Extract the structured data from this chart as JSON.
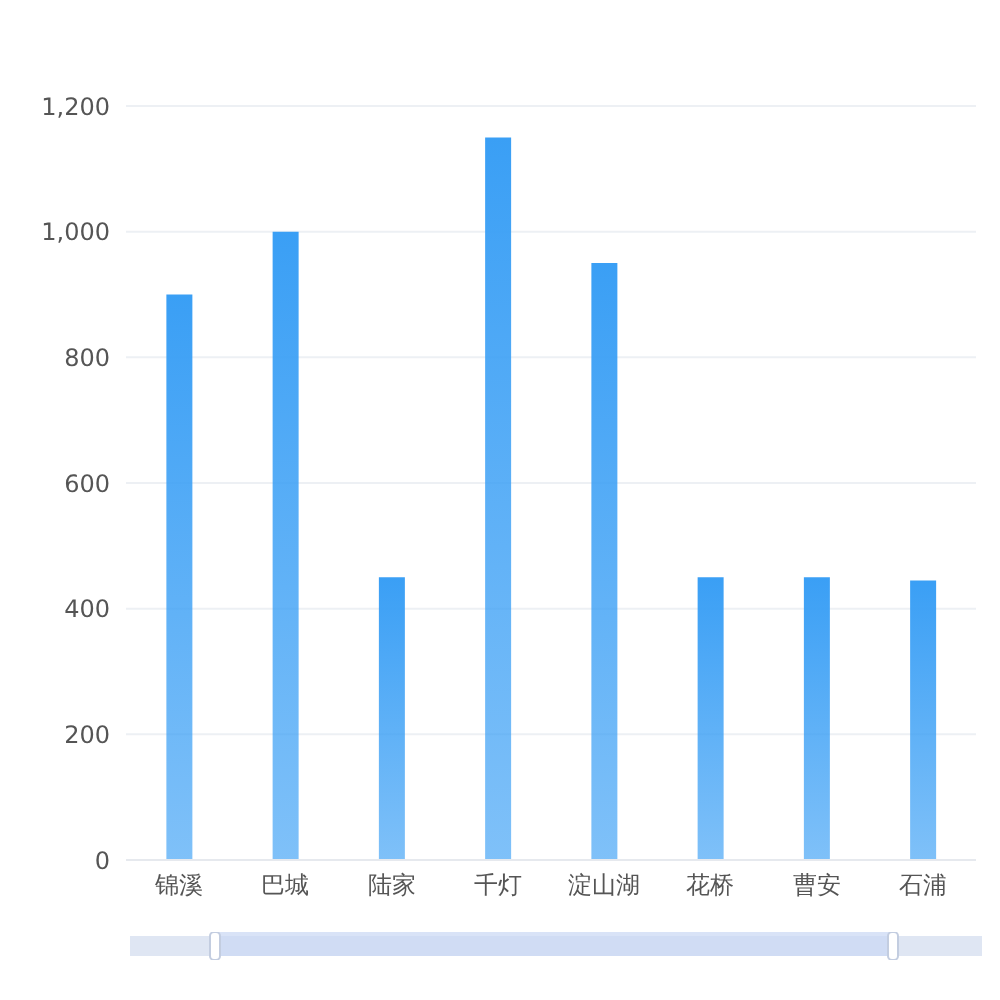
{
  "chart_data": {
    "type": "bar",
    "categories": [
      "锦溪",
      "巴城",
      "陆家",
      "千灯",
      "淀山湖",
      "花桥",
      "曹安",
      "石浦"
    ],
    "values": [
      900,
      1000,
      450,
      1150,
      950,
      450,
      450,
      445
    ],
    "color": "#3a9ff5",
    "ylim": [
      0,
      1200
    ],
    "yticks": [
      0,
      200,
      400,
      600,
      800,
      {
        "value": 1000,
        "label": "1,000"
      },
      {
        "value": 1200,
        "label": "1,200"
      }
    ],
    "grid": "y"
  }
}
